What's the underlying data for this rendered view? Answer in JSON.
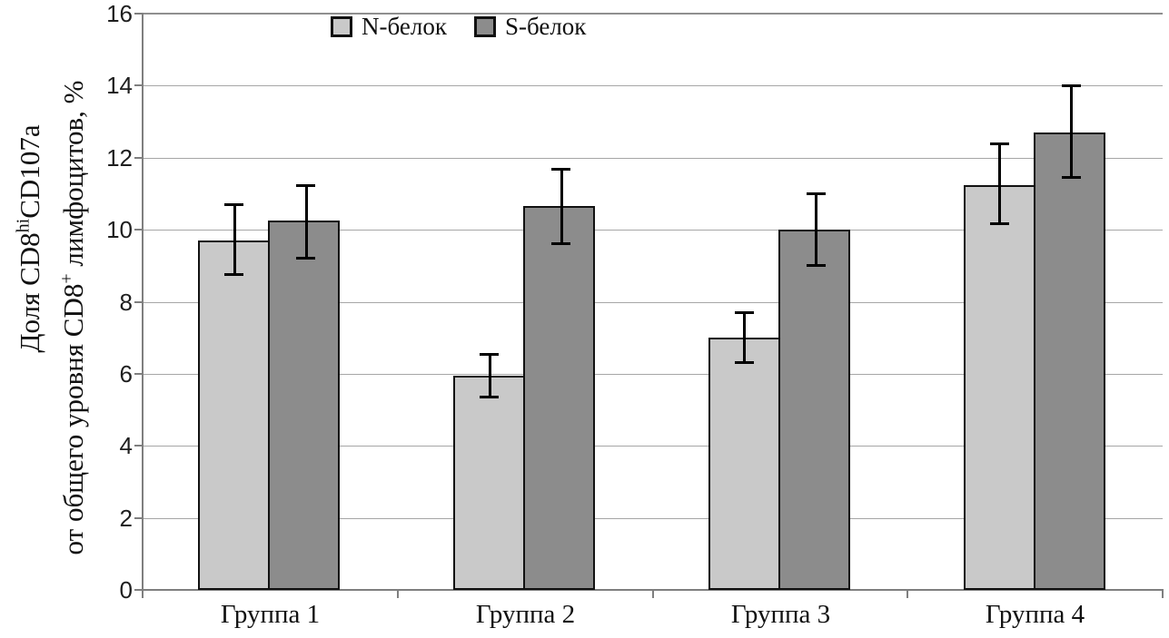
{
  "chart_data": {
    "type": "bar",
    "title": "",
    "categories": [
      "Группа 1",
      "Группа 2",
      "Группа 3",
      "Группа 4"
    ],
    "series": [
      {
        "name": "N-белок",
        "color": "#c9c9c9",
        "values": [
          9.7,
          5.95,
          7.0,
          11.25
        ],
        "error_low": [
          8.75,
          5.35,
          6.3,
          10.15
        ],
        "error_high": [
          10.7,
          6.55,
          7.7,
          12.4
        ]
      },
      {
        "name": "S-белок",
        "color": "#8c8c8c",
        "values": [
          10.25,
          10.65,
          10.0,
          12.7
        ],
        "error_low": [
          9.2,
          9.6,
          9.0,
          11.45
        ],
        "error_high": [
          11.25,
          11.7,
          11.0,
          14.0
        ]
      }
    ],
    "ylabel": {
      "line1": {
        "pre": "Доля CD8",
        "sup": "hi",
        "post": "CD107a"
      },
      "line2": {
        "pre": "от общего уровня CD8",
        "sup": "+",
        "post": " лимфоцитов, %"
      }
    },
    "xlabel": "",
    "ylim": [
      0,
      16
    ],
    "yticks": [
      0,
      2,
      4,
      6,
      8,
      10,
      12,
      14,
      16
    ],
    "grid": "horizontal",
    "legend_position": "top-center",
    "error_bar_color": "#000000",
    "bar_border_color": "#111111"
  }
}
